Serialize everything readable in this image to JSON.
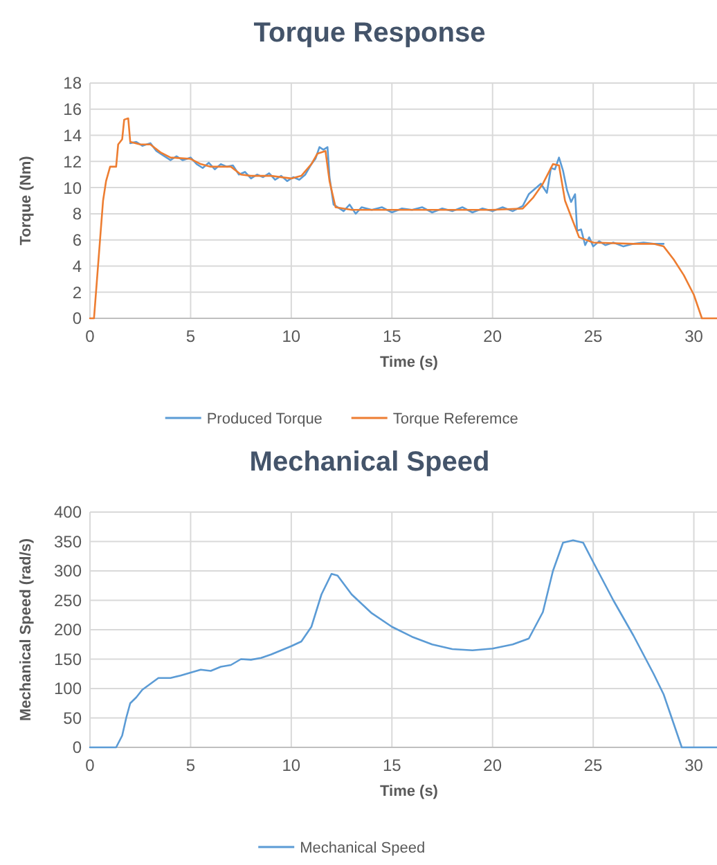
{
  "chart_data": [
    {
      "type": "line",
      "title": "Torque Response",
      "xlabel": "Time (s)",
      "ylabel": "Torque (Nm)",
      "xlim": [
        0,
        31.7
      ],
      "xticks": [
        0,
        5,
        10,
        15,
        20,
        25,
        30
      ],
      "ylim": [
        0,
        18
      ],
      "yticks": [
        0,
        2,
        4,
        6,
        8,
        10,
        12,
        14,
        16,
        18
      ],
      "grid": true,
      "legend": "bottom",
      "marker": "none",
      "line_style": "solid",
      "series": [
        {
          "name": "Produced Torque",
          "color": "#5b9bd5",
          "x": [
            2.0,
            2.3,
            2.6,
            3.0,
            3.3,
            3.6,
            4.0,
            4.3,
            4.6,
            5.0,
            5.3,
            5.6,
            5.9,
            6.2,
            6.5,
            6.8,
            7.1,
            7.4,
            7.7,
            8.0,
            8.3,
            8.6,
            8.9,
            9.2,
            9.5,
            9.8,
            10.1,
            10.4,
            10.7,
            11.0,
            11.2,
            11.4,
            11.6,
            11.8,
            11.9,
            12.1,
            12.3,
            12.6,
            12.9,
            13.2,
            13.5,
            14,
            14.5,
            15,
            15.5,
            16,
            16.5,
            17,
            17.5,
            18,
            18.5,
            19,
            19.5,
            20,
            20.5,
            21,
            21.5,
            21.8,
            22.1,
            22.4,
            22.7,
            22.9,
            23.1,
            23.3,
            23.5,
            23.7,
            23.9,
            24.1,
            24.2,
            24.4,
            24.6,
            24.8,
            25.0,
            25.3,
            25.6,
            26,
            26.5,
            27,
            27.5,
            28,
            28.5
          ],
          "values": [
            13.4,
            13.5,
            13.2,
            13.4,
            12.8,
            12.5,
            12.1,
            12.4,
            12.1,
            12.3,
            11.8,
            11.5,
            11.9,
            11.4,
            11.8,
            11.6,
            11.7,
            11.0,
            11.2,
            10.7,
            11.0,
            10.8,
            11.1,
            10.6,
            10.9,
            10.5,
            10.8,
            10.6,
            11.0,
            11.8,
            12.2,
            13.1,
            12.9,
            13.1,
            10.8,
            8.7,
            8.5,
            8.2,
            8.7,
            8.0,
            8.5,
            8.3,
            8.5,
            8.1,
            8.4,
            8.3,
            8.5,
            8.1,
            8.4,
            8.2,
            8.5,
            8.1,
            8.4,
            8.2,
            8.5,
            8.2,
            8.6,
            9.5,
            9.9,
            10.3,
            9.6,
            11.5,
            11.4,
            12.3,
            11.3,
            9.8,
            8.9,
            9.5,
            6.7,
            6.8,
            5.6,
            6.2,
            5.5,
            5.9,
            5.6,
            5.8,
            5.5,
            5.7,
            5.8,
            5.7,
            5.7
          ]
        },
        {
          "name": "Torque Referemce",
          "color": "#ed7d31",
          "x": [
            0,
            0.2,
            0.35,
            0.5,
            0.65,
            0.8,
            1.0,
            1.3,
            1.4,
            1.6,
            1.7,
            1.9,
            2.0,
            2.5,
            3.0,
            3.5,
            4,
            5,
            5.5,
            6,
            7,
            7.5,
            8,
            9,
            10,
            10.5,
            11,
            11.3,
            11.7,
            11.9,
            12.2,
            13,
            15,
            20,
            21.5,
            22,
            22.5,
            23,
            23.3,
            23.6,
            23.9,
            24.3,
            25,
            27,
            28,
            28.5,
            29,
            29.5,
            30,
            30.4,
            31.7
          ],
          "values": [
            0,
            0,
            3,
            6,
            9,
            10.5,
            11.6,
            11.6,
            13.3,
            13.7,
            15.2,
            15.3,
            13.5,
            13.3,
            13.3,
            12.7,
            12.3,
            12.2,
            11.8,
            11.6,
            11.6,
            11.0,
            10.9,
            10.9,
            10.7,
            10.9,
            11.8,
            12.6,
            12.8,
            10.5,
            8.5,
            8.3,
            8.3,
            8.3,
            8.4,
            9.2,
            10.3,
            11.8,
            11.7,
            9.0,
            7.8,
            6.2,
            5.8,
            5.7,
            5.7,
            5.5,
            4.5,
            3.3,
            1.8,
            0,
            0
          ]
        }
      ]
    },
    {
      "type": "line",
      "title": "Mechanical Speed",
      "xlabel": "Time (s)",
      "ylabel": "Mechanical Speed (rad/s)",
      "xlim": [
        0,
        31.7
      ],
      "xticks": [
        0,
        5,
        10,
        15,
        20,
        25,
        30
      ],
      "ylim": [
        0,
        400
      ],
      "yticks": [
        0,
        50,
        100,
        150,
        200,
        250,
        300,
        350,
        400
      ],
      "grid": true,
      "legend": "bottom",
      "marker": "none",
      "line_style": "solid",
      "series": [
        {
          "name": "Mechanical Speed",
          "color": "#5b9bd5",
          "x": [
            0,
            1.3,
            1.6,
            1.8,
            2.0,
            2.3,
            2.6,
            3.0,
            3.4,
            4,
            4.5,
            5,
            5.5,
            6,
            6.5,
            7,
            7.5,
            8,
            8.5,
            9,
            9.5,
            10,
            10.5,
            11,
            11.5,
            12,
            12.3,
            13,
            14,
            15,
            16,
            17,
            18,
            19,
            20,
            21,
            21.8,
            22.5,
            23,
            23.5,
            24,
            24.5,
            25,
            26,
            27,
            28,
            28.5,
            29,
            29.4,
            31.7
          ],
          "values": [
            0,
            0,
            20,
            50,
            75,
            85,
            98,
            108,
            118,
            118,
            122,
            127,
            132,
            130,
            137,
            140,
            150,
            149,
            152,
            158,
            165,
            172,
            180,
            205,
            260,
            295,
            292,
            260,
            228,
            205,
            188,
            175,
            167,
            165,
            168,
            175,
            185,
            230,
            300,
            348,
            352,
            348,
            315,
            250,
            190,
            125,
            90,
            40,
            0,
            0
          ]
        }
      ]
    }
  ]
}
